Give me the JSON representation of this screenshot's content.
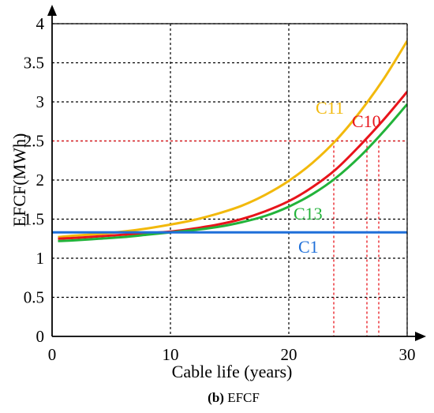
{
  "chart_data": {
    "type": "line",
    "xlabel": "Cable life (years)",
    "ylabel": "EFCF(MWh)",
    "xlim": [
      0,
      30
    ],
    "ylim": [
      0,
      4
    ],
    "x_ticks": [
      "0",
      "10",
      "20",
      "30"
    ],
    "y_ticks": [
      "0",
      "0.5",
      "1",
      "1.5",
      "2",
      "2.5",
      "3",
      "3.5",
      "4"
    ],
    "grid": true,
    "series": [
      {
        "name": "C11",
        "color": "#f2b90c",
        "x": [
          0.5,
          2,
          4,
          6,
          8,
          10,
          12,
          14,
          16,
          18,
          20,
          22,
          24,
          26,
          28,
          30
        ],
        "y": [
          1.27,
          1.29,
          1.31,
          1.34,
          1.38,
          1.43,
          1.49,
          1.57,
          1.67,
          1.81,
          1.99,
          2.22,
          2.51,
          2.87,
          3.29,
          3.78
        ]
      },
      {
        "name": "C10",
        "color": "#e8141b",
        "x": [
          0.5,
          2,
          4,
          6,
          8,
          10,
          12,
          14,
          16,
          18,
          20,
          22,
          24,
          26,
          28,
          30
        ],
        "y": [
          1.25,
          1.26,
          1.28,
          1.3,
          1.32,
          1.34,
          1.38,
          1.43,
          1.5,
          1.6,
          1.73,
          1.91,
          2.14,
          2.44,
          2.77,
          3.13
        ]
      },
      {
        "name": "C13",
        "color": "#22b33a",
        "x": [
          0.5,
          2,
          4,
          6,
          8,
          10,
          12,
          14,
          16,
          18,
          20,
          22,
          24,
          26,
          28,
          30
        ],
        "y": [
          1.22,
          1.23,
          1.25,
          1.27,
          1.3,
          1.33,
          1.36,
          1.4,
          1.46,
          1.54,
          1.66,
          1.82,
          2.03,
          2.3,
          2.62,
          2.97
        ]
      },
      {
        "name": "C1",
        "color": "#1e6fd9",
        "x": [
          0,
          30
        ],
        "y": [
          1.33,
          1.33
        ]
      }
    ],
    "reference_line": {
      "y": 2.5,
      "color": "#e8141b"
    },
    "drop_lines_x": [
      23.8,
      26.6,
      27.6
    ]
  },
  "caption": {
    "letter": "(b)",
    "text": " EFCF"
  }
}
